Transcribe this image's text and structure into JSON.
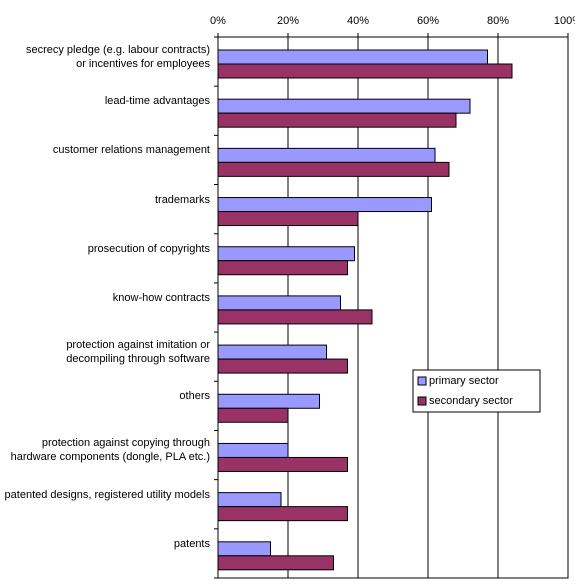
{
  "chart_data": {
    "type": "bar",
    "orientation": "horizontal",
    "categories": [
      "secrecy pledge (e.g. labour contracts)\nor incentives for employees",
      "lead-time advantages",
      "customer relations management",
      "trademarks",
      "prosecution of copyrights",
      "know-how contracts",
      "protection against imitation or\ndecompiling through software",
      "others",
      "protection against copying through\nhardware components (dongle, PLA etc.)",
      "patented designs, registered utility models",
      "patents"
    ],
    "series": [
      {
        "name": "primary sector",
        "color": "#9999ff",
        "values": [
          77,
          72,
          62,
          61,
          39,
          35,
          31,
          29,
          20,
          18,
          15
        ]
      },
      {
        "name": "secondary sector",
        "color": "#993366",
        "values": [
          84,
          68,
          66,
          40,
          37,
          44,
          37,
          20,
          37,
          37,
          33
        ]
      }
    ],
    "xlim": [
      0,
      100
    ],
    "xticks": [
      {
        "value": 0,
        "label": "0%"
      },
      {
        "value": 20,
        "label": "20%"
      },
      {
        "value": 40,
        "label": "40%"
      },
      {
        "value": 60,
        "label": "60%"
      },
      {
        "value": 80,
        "label": "80%"
      },
      {
        "value": 100,
        "label": "100%"
      }
    ],
    "grid": true,
    "legend": "right"
  }
}
